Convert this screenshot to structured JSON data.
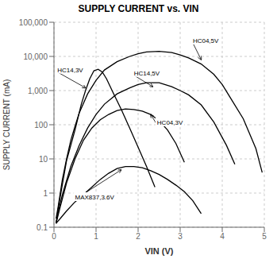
{
  "chart_data": {
    "type": "line",
    "title": "SUPPLY CURRENT vs. VIN",
    "x_label": "VIN (V)",
    "y_label": "SUPPLY CURRENT (mA)",
    "log": "y",
    "grid": true,
    "xlim": [
      0,
      5
    ],
    "ylim": [
      0.1,
      100000
    ],
    "xticks": [
      0,
      1,
      2,
      3,
      4,
      5
    ],
    "yticks": [
      0.1,
      1,
      10,
      100,
      {
        "value": 1000,
        "label": "1,000"
      },
      {
        "value": 10000,
        "label": "10,000"
      },
      {
        "value": 100000,
        "label": "100,000"
      }
    ],
    "series": [
      {
        "color": "#000000",
        "x": [
          0.05,
          0.1,
          0.15,
          0.2,
          0.3,
          0.4,
          0.5,
          0.6,
          0.8,
          1.0,
          1.2,
          1.5,
          1.8,
          2.0,
          2.2,
          2.5,
          2.8,
          3.0,
          3.2,
          3.5,
          3.8,
          4.0,
          4.2,
          4.5,
          4.8,
          4.95
        ],
        "values": [
          0.18,
          0.4,
          1.0,
          2.5,
          10,
          35,
          90,
          220,
          800,
          2000,
          4000,
          7000,
          10000,
          12000,
          13500,
          14000,
          13000,
          11000,
          9000,
          6000,
          3000,
          1500,
          600,
          150,
          20,
          4
        ]
      },
      {
        "color": "#000000",
        "x": [
          0.05,
          0.1,
          0.2,
          0.3,
          0.5,
          0.65,
          0.75,
          0.85,
          0.95,
          1.05,
          1.15,
          1.25,
          1.4,
          1.6,
          1.8,
          2.0,
          2.2,
          2.4
        ],
        "values": [
          0.13,
          0.35,
          1.8,
          9,
          70,
          400,
          1000,
          2200,
          3800,
          4200,
          3500,
          2200,
          900,
          280,
          80,
          22,
          6,
          1.5
        ]
      },
      {
        "color": "#000000",
        "x": [
          0.05,
          0.1,
          0.2,
          0.4,
          0.6,
          0.8,
          1.0,
          1.2,
          1.5,
          1.8,
          2.0,
          2.2,
          2.5,
          2.8,
          3.0,
          3.2,
          3.5,
          3.8,
          4.1,
          4.3
        ],
        "values": [
          0.13,
          0.28,
          0.9,
          6,
          25,
          80,
          200,
          400,
          800,
          1200,
          1500,
          1700,
          1700,
          1300,
          1000,
          750,
          380,
          120,
          25,
          7
        ]
      },
      {
        "color": "#000000",
        "x": [
          0.05,
          0.15,
          0.3,
          0.5,
          0.7,
          0.9,
          1.1,
          1.3,
          1.5,
          1.7,
          1.9,
          2.1,
          2.3,
          2.5,
          2.7,
          2.9,
          3.1
        ],
        "values": [
          0.13,
          0.4,
          2.0,
          10,
          35,
          80,
          140,
          200,
          260,
          290,
          280,
          250,
          200,
          130,
          70,
          28,
          8
        ]
      },
      {
        "color": "#000000",
        "x": [
          0.05,
          0.15,
          0.3,
          0.5,
          0.7,
          0.9,
          1.1,
          1.3,
          1.5,
          1.7,
          1.9,
          2.1,
          2.3,
          2.5,
          2.7,
          2.9,
          3.1,
          3.3,
          3.5
        ],
        "values": [
          0.13,
          0.18,
          0.3,
          0.55,
          0.9,
          1.5,
          2.5,
          3.8,
          5.2,
          6.0,
          6.0,
          5.5,
          4.5,
          3.5,
          2.5,
          1.7,
          1.1,
          0.6,
          0.25
        ]
      }
    ],
    "annotations": [
      {
        "text": "HC04,5V",
        "x": 3.3,
        "y": 25000,
        "arrow_x": 3.5,
        "arrow_y": 8000
      },
      {
        "text": "HC14,3V",
        "x": 0.08,
        "y": 3500,
        "arrow_x": 0.75,
        "arrow_y": 1200
      },
      {
        "text": "HC14,5V",
        "x": 1.9,
        "y": 2800,
        "arrow_x": 2.35,
        "arrow_y": 1300
      },
      {
        "text": "HC04,3V",
        "x": 2.45,
        "y": 100,
        "arrow_x": 2.3,
        "arrow_y": 200
      },
      {
        "text": "MAX837,3.6V",
        "x": 0.5,
        "y": 0.65,
        "arrow_x": 1.6,
        "arrow_y": 4.8
      }
    ]
  }
}
